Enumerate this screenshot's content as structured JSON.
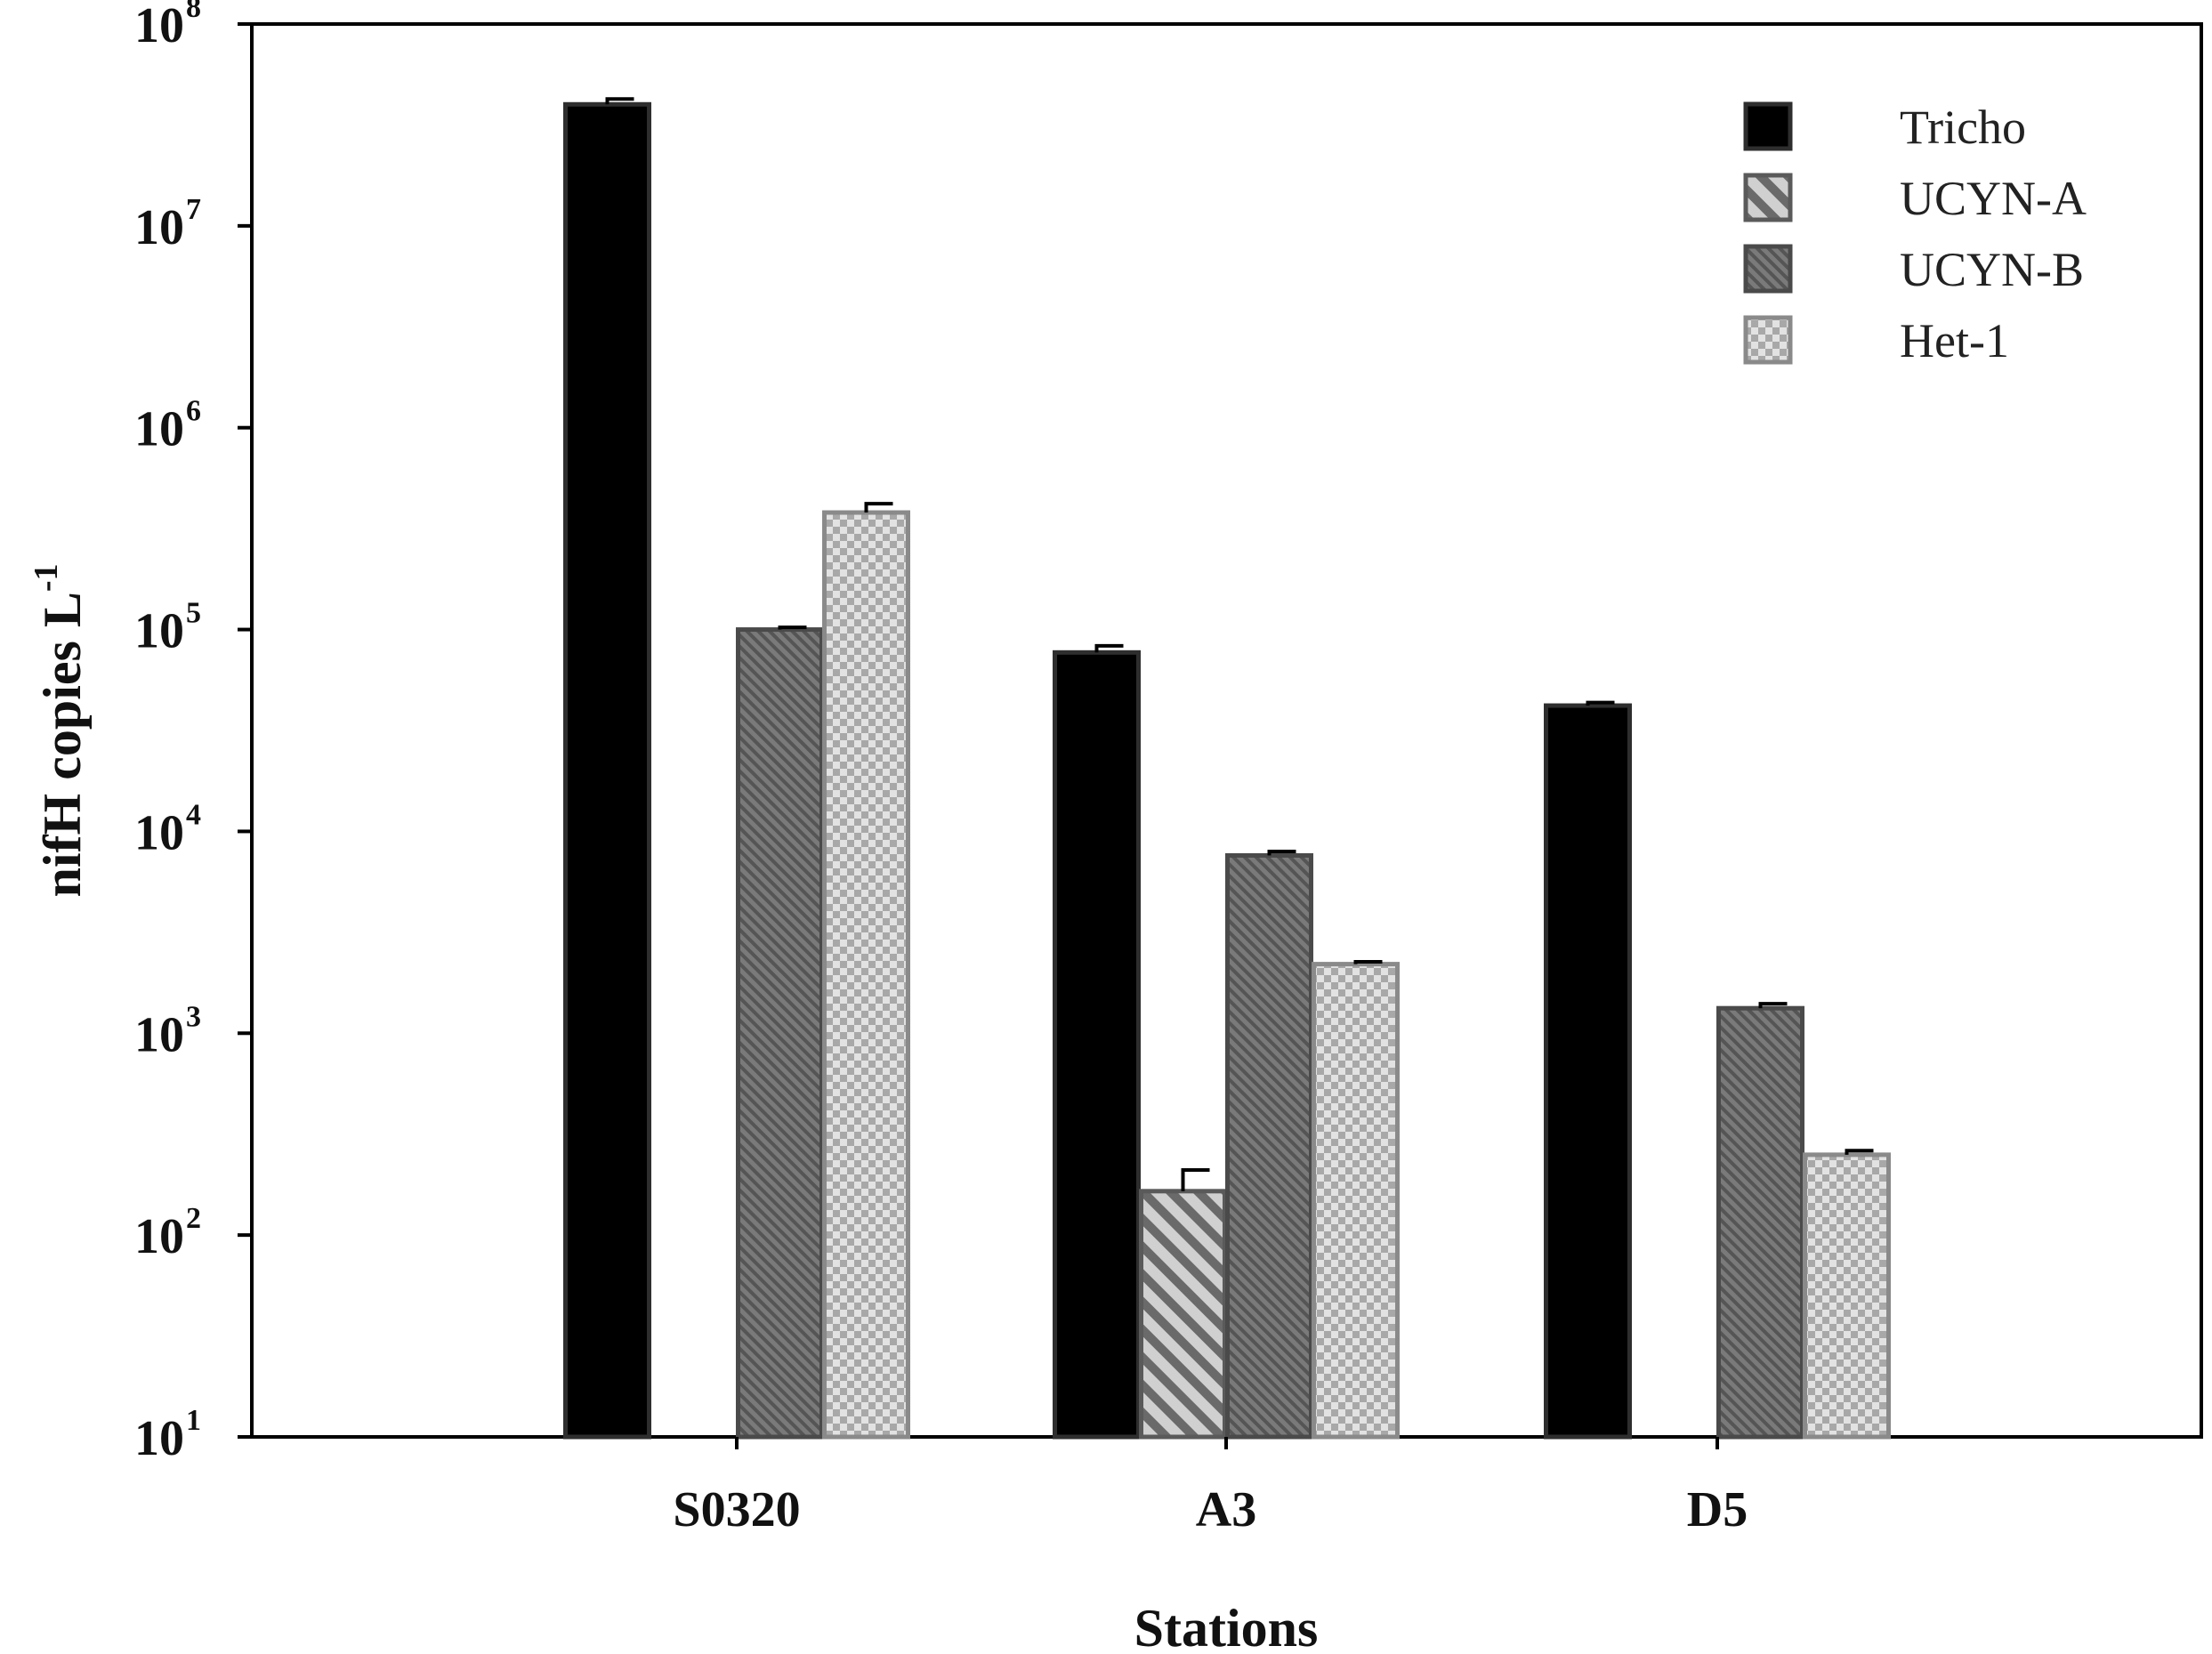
{
  "chart_data": {
    "type": "bar",
    "y_scale": "log",
    "ylim": [
      10,
      100000000
    ],
    "y_ticks": [
      {
        "base": "10",
        "exp": "1"
      },
      {
        "base": "10",
        "exp": "2"
      },
      {
        "base": "10",
        "exp": "3"
      },
      {
        "base": "10",
        "exp": "4"
      },
      {
        "base": "10",
        "exp": "5"
      },
      {
        "base": "10",
        "exp": "6"
      },
      {
        "base": "10",
        "exp": "7"
      },
      {
        "base": "10",
        "exp": "8"
      }
    ],
    "xlabel": "Stations",
    "ylabel": "nifH copies L",
    "ylabel_sup": "-1",
    "categories": [
      "S0320",
      "A3",
      "D5"
    ],
    "legend_position": "top-right",
    "grid": false,
    "series": [
      {
        "name": "Tricho",
        "pattern": "solid",
        "color": "#000000",
        "values": [
          40000000,
          77000,
          42000
        ],
        "errors": [
          2500000,
          6000,
          1500
        ]
      },
      {
        "name": "UCYN-A",
        "pattern": "diagonal-stripes",
        "color": "#6a6a6a",
        "values": [
          null,
          165,
          null
        ],
        "errors": [
          null,
          45,
          null
        ]
      },
      {
        "name": "UCYN-B",
        "pattern": "dense-stripes",
        "color": "#5e5e5e",
        "values": [
          100000,
          7600,
          1330
        ],
        "errors": [
          2500,
          350,
          70
        ]
      },
      {
        "name": "Het-1",
        "pattern": "checker",
        "color": "#b5b5b5",
        "values": [
          380000,
          2200,
          250
        ],
        "errors": [
          40000,
          60,
          12
        ]
      }
    ]
  }
}
